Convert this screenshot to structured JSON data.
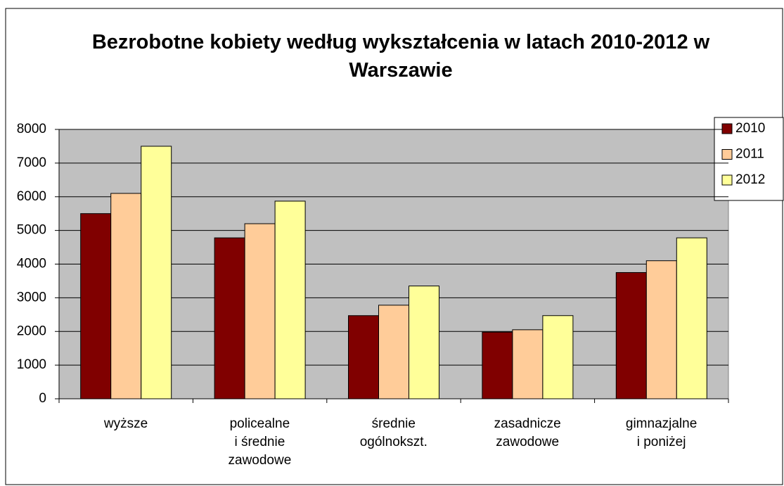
{
  "chart_data": {
    "type": "bar",
    "title": "Bezrobotne kobiety według wykształcenia w latach 2010-2012 w Warszawie",
    "categories": [
      "wyższe",
      "policealne\ni średnie\nzawodowe",
      "średnie\nogólnokszt.",
      "zasadnicze\nzawodowe",
      "gimnazjalne\ni poniżej"
    ],
    "series": [
      {
        "name": "2010",
        "color": "#800000",
        "values": [
          5500,
          4780,
          2470,
          1980,
          3750
        ]
      },
      {
        "name": "2011",
        "color": "#ffcc99",
        "values": [
          6100,
          5200,
          2780,
          2050,
          4100
        ]
      },
      {
        "name": "2012",
        "color": "#ffff99",
        "values": [
          7500,
          5870,
          3350,
          2470,
          4780
        ]
      }
    ],
    "ylim": [
      0,
      8000
    ],
    "yticks": [
      0,
      1000,
      2000,
      3000,
      4000,
      5000,
      6000,
      7000,
      8000
    ],
    "grid": true,
    "legend": "right"
  }
}
